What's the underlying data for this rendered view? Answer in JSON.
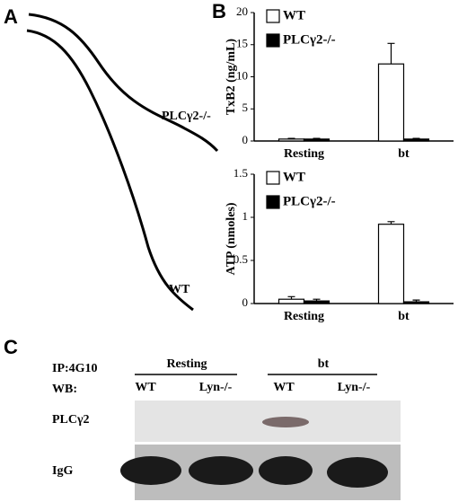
{
  "panels": {
    "a": {
      "label": "A",
      "trace_labels": [
        "PLCγ2-/-",
        "WT"
      ]
    },
    "b": {
      "label": "B"
    },
    "c": {
      "label": "C",
      "ip": "IP:4G10",
      "wb": "WB:",
      "groups": [
        "Resting",
        "bt"
      ],
      "lanes": [
        "WT",
        "Lyn-/-",
        "WT",
        "Lyn-/-"
      ],
      "blots": [
        "PLCγ2",
        "IgG"
      ]
    }
  },
  "chart_data": [
    {
      "type": "bar",
      "ylabel": "TxB2 (ng/mL)",
      "categories": [
        "Resting",
        "bt"
      ],
      "series": [
        {
          "name": "WT",
          "color": "#ffffff",
          "values": [
            0.3,
            12
          ],
          "errors": [
            0.1,
            3.2
          ]
        },
        {
          "name": "PLCγ2-/-",
          "color": "#000000",
          "values": [
            0.3,
            0.3
          ],
          "errors": [
            0.1,
            0.1
          ]
        }
      ],
      "ylim": [
        0,
        20
      ],
      "yticks": [
        0,
        5,
        10,
        15,
        20
      ]
    },
    {
      "type": "bar",
      "ylabel": "ATP (nmoles)",
      "categories": [
        "Resting",
        "bt"
      ],
      "series": [
        {
          "name": "WT",
          "color": "#ffffff",
          "values": [
            0.05,
            0.92
          ],
          "errors": [
            0.03,
            0.03
          ]
        },
        {
          "name": "PLCγ2-/-",
          "color": "#000000",
          "values": [
            0.03,
            0.02
          ],
          "errors": [
            0.02,
            0.02
          ]
        }
      ],
      "ylim": [
        0,
        1.5
      ],
      "yticks": [
        0,
        0.5,
        1,
        {
          "value": 1.5,
          "label": "1.5"
        }
      ]
    }
  ]
}
